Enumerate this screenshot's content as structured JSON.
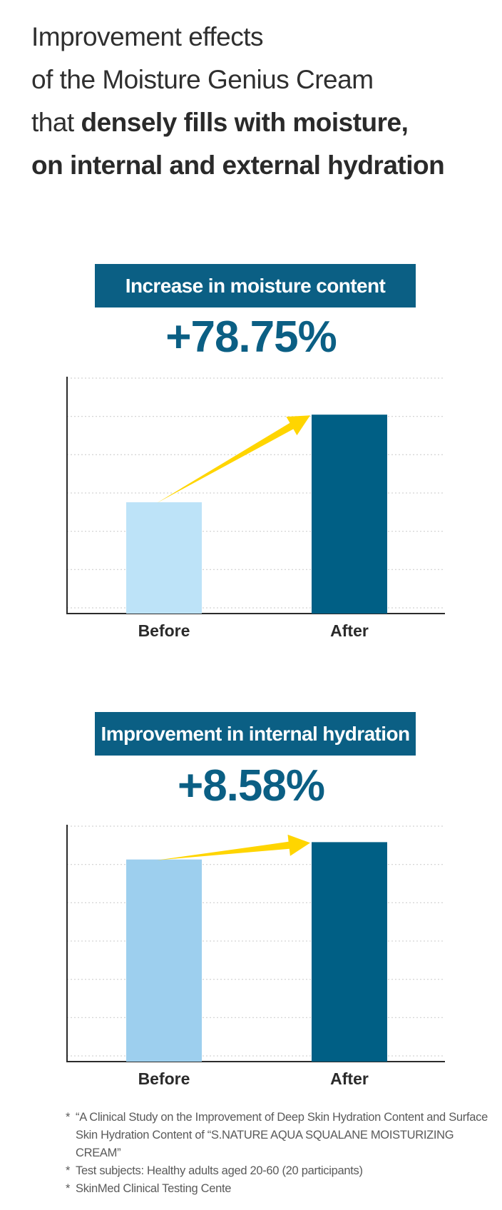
{
  "headline": {
    "line1": "Improvement effects",
    "line2": "of the Moisture Genius Cream",
    "line3_regular": "that ",
    "line3_bold": "densely fills with moisture,",
    "line4_bold": "on internal and external hydration"
  },
  "chart_data": [
    {
      "type": "bar",
      "title": "Increase in moisture content",
      "change_label": "+78.75%",
      "categories": [
        "Before",
        "After"
      ],
      "values": [
        47,
        83.97
      ],
      "ylim": [
        0,
        100
      ],
      "grid": true,
      "bar_colors": [
        "#bde3f8",
        "#005f85"
      ],
      "arrow_color": "#ffd500"
    },
    {
      "type": "bar",
      "title": "Improvement in internal hydration",
      "change_label": "+8.58%",
      "categories": [
        "Before",
        "After"
      ],
      "values": [
        64,
        69.49
      ],
      "ylim": [
        0,
        75
      ],
      "grid": true,
      "bar_colors": [
        "#9dcfee",
        "#005f85"
      ],
      "arrow_color": "#ffd500"
    }
  ],
  "footnotes": [
    "“A Clinical Study on the Improvement of Deep Skin Hydration Content and Surface Skin Hydration Content of “S.NATURE AQUA SQUALANE MOISTURIZING CREAM”",
    "Test subjects: Healthy adults aged 20-60 (20 participants)",
    "SkinMed Clinical Testing Cente"
  ],
  "footnote_marker": "*",
  "colors": {
    "accent": "#0b5f84",
    "banner_text": "#ffffff"
  }
}
